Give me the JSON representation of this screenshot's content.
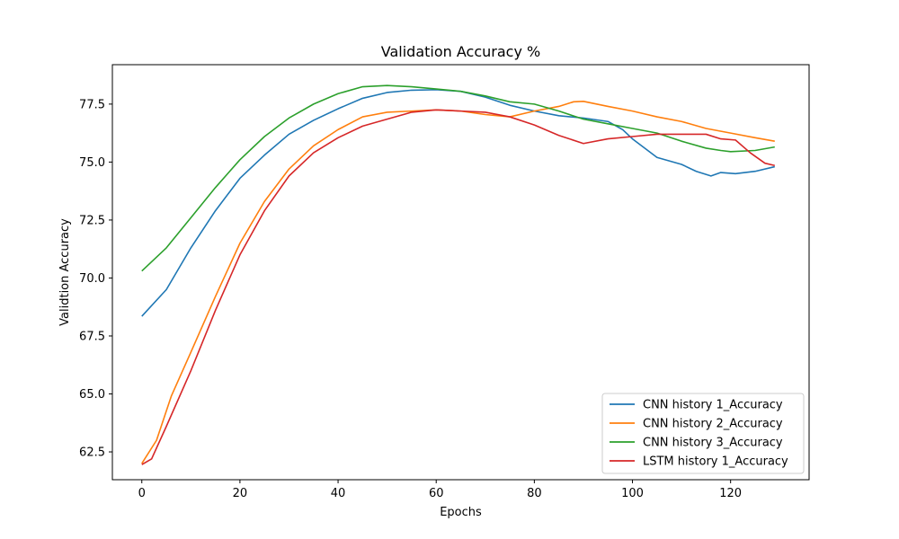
{
  "chart_data": {
    "type": "line",
    "title": "Validation Accuracy %",
    "xlabel": "Epochs",
    "ylabel": "Validtion Accuracy",
    "xlim": [
      -6,
      136
    ],
    "ylim": [
      61.3,
      79.2
    ],
    "xticks": [
      0,
      20,
      40,
      60,
      80,
      100,
      120
    ],
    "yticks": [
      62.5,
      65.0,
      67.5,
      70.0,
      72.5,
      75.0,
      77.5
    ],
    "ytick_labels": [
      "62.5",
      "65.0",
      "67.5",
      "70.0",
      "72.5",
      "75.0",
      "77.5"
    ],
    "grid": false,
    "legend_position": "lower-right",
    "series": [
      {
        "name": "CNN history 1_Accuracy",
        "color": "#1f77b4",
        "points": [
          [
            0,
            68.35
          ],
          [
            5,
            69.5
          ],
          [
            10,
            71.3
          ],
          [
            15,
            72.9
          ],
          [
            20,
            74.3
          ],
          [
            25,
            75.3
          ],
          [
            30,
            76.2
          ],
          [
            35,
            76.8
          ],
          [
            40,
            77.3
          ],
          [
            45,
            77.75
          ],
          [
            50,
            78.0
          ],
          [
            55,
            78.1
          ],
          [
            60,
            78.12
          ],
          [
            65,
            78.05
          ],
          [
            70,
            77.8
          ],
          [
            75,
            77.45
          ],
          [
            80,
            77.2
          ],
          [
            85,
            77.0
          ],
          [
            90,
            76.9
          ],
          [
            95,
            76.75
          ],
          [
            98,
            76.4
          ],
          [
            100,
            76.0
          ],
          [
            105,
            75.2
          ],
          [
            110,
            74.9
          ],
          [
            113,
            74.6
          ],
          [
            116,
            74.4
          ],
          [
            118,
            74.55
          ],
          [
            121,
            74.5
          ],
          [
            125,
            74.6
          ],
          [
            129,
            74.8
          ]
        ]
      },
      {
        "name": "CNN history 2_Accuracy",
        "color": "#ff7f0e",
        "points": [
          [
            0,
            62.0
          ],
          [
            3,
            63.0
          ],
          [
            6,
            64.9
          ],
          [
            10,
            66.8
          ],
          [
            15,
            69.2
          ],
          [
            20,
            71.5
          ],
          [
            25,
            73.3
          ],
          [
            30,
            74.7
          ],
          [
            35,
            75.7
          ],
          [
            40,
            76.4
          ],
          [
            45,
            76.95
          ],
          [
            50,
            77.15
          ],
          [
            55,
            77.2
          ],
          [
            60,
            77.25
          ],
          [
            65,
            77.2
          ],
          [
            70,
            77.05
          ],
          [
            75,
            76.95
          ],
          [
            80,
            77.2
          ],
          [
            85,
            77.4
          ],
          [
            88,
            77.6
          ],
          [
            90,
            77.62
          ],
          [
            95,
            77.4
          ],
          [
            100,
            77.2
          ],
          [
            105,
            76.95
          ],
          [
            110,
            76.75
          ],
          [
            115,
            76.45
          ],
          [
            120,
            76.25
          ],
          [
            125,
            76.05
          ],
          [
            129,
            75.9
          ]
        ]
      },
      {
        "name": "CNN history 3_Accuracy",
        "color": "#2ca02c",
        "points": [
          [
            0,
            70.3
          ],
          [
            5,
            71.3
          ],
          [
            10,
            72.6
          ],
          [
            15,
            73.9
          ],
          [
            20,
            75.1
          ],
          [
            25,
            76.1
          ],
          [
            30,
            76.9
          ],
          [
            35,
            77.5
          ],
          [
            40,
            77.95
          ],
          [
            45,
            78.25
          ],
          [
            50,
            78.3
          ],
          [
            55,
            78.25
          ],
          [
            60,
            78.15
          ],
          [
            65,
            78.05
          ],
          [
            70,
            77.85
          ],
          [
            75,
            77.6
          ],
          [
            80,
            77.5
          ],
          [
            85,
            77.2
          ],
          [
            90,
            76.85
          ],
          [
            95,
            76.65
          ],
          [
            100,
            76.45
          ],
          [
            105,
            76.25
          ],
          [
            110,
            75.9
          ],
          [
            115,
            75.6
          ],
          [
            118,
            75.5
          ],
          [
            120,
            75.45
          ],
          [
            125,
            75.5
          ],
          [
            129,
            75.65
          ]
        ]
      },
      {
        "name": "LSTM history 1_Accuracy",
        "color": "#d62728",
        "points": [
          [
            0,
            61.95
          ],
          [
            2,
            62.2
          ],
          [
            5,
            63.6
          ],
          [
            10,
            66.0
          ],
          [
            15,
            68.6
          ],
          [
            20,
            71.0
          ],
          [
            25,
            72.9
          ],
          [
            30,
            74.4
          ],
          [
            35,
            75.4
          ],
          [
            40,
            76.05
          ],
          [
            45,
            76.55
          ],
          [
            50,
            76.85
          ],
          [
            55,
            77.15
          ],
          [
            60,
            77.25
          ],
          [
            65,
            77.2
          ],
          [
            70,
            77.15
          ],
          [
            75,
            76.95
          ],
          [
            80,
            76.6
          ],
          [
            85,
            76.15
          ],
          [
            90,
            75.8
          ],
          [
            95,
            76.0
          ],
          [
            100,
            76.1
          ],
          [
            105,
            76.2
          ],
          [
            110,
            76.2
          ],
          [
            115,
            76.2
          ],
          [
            118,
            76.0
          ],
          [
            121,
            75.95
          ],
          [
            124,
            75.4
          ],
          [
            127,
            74.95
          ],
          [
            129,
            74.85
          ]
        ]
      }
    ]
  }
}
